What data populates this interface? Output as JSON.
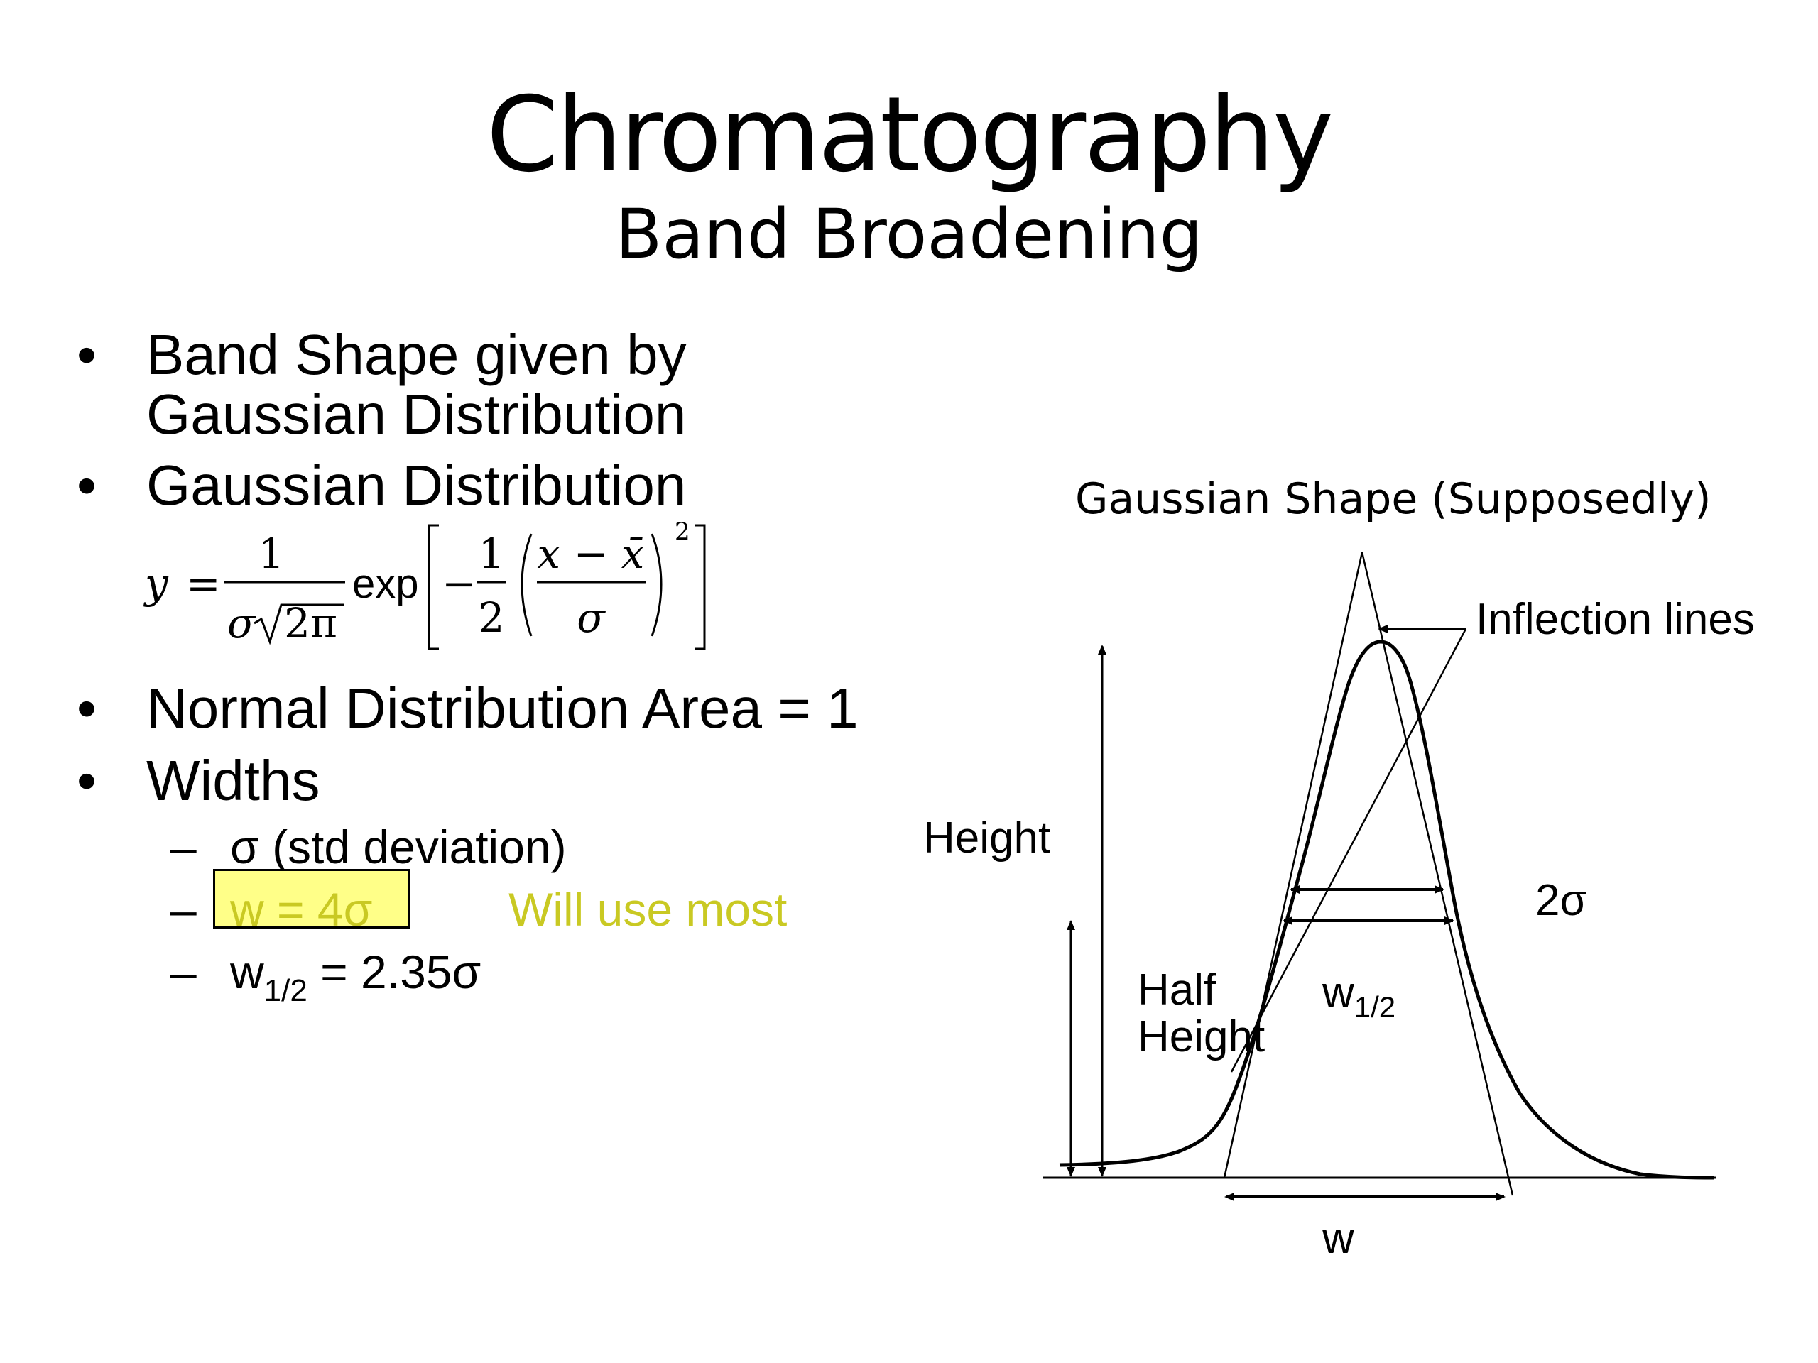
{
  "slide": {
    "title": "Chromatography",
    "subtitle": "Band Broadening"
  },
  "bullets": {
    "b1_line1": "Band Shape given by",
    "b1_line2": "Gaussian Distribution",
    "b2": "Gaussian Distribution",
    "b3": "Normal Distribution Area = 1",
    "b4": "Widths",
    "bullet_char": "•",
    "dash_char": "–"
  },
  "formula": {
    "y": "y",
    "eq": "=",
    "one": "1",
    "sigma": "σ",
    "sqrt2pi": "2π",
    "exp": "exp",
    "minus": "−",
    "half_num": "1",
    "half_den": "2",
    "x_minus_xbar": "x − x̄",
    "inner_den": "σ",
    "power": "2"
  },
  "widths": {
    "sigma_def": "σ (std deviation)",
    "w_def": "w = 4σ",
    "w_note": "Will use most",
    "whalf_prefix": "w",
    "whalf_sub": "1/2",
    "whalf_rest": " = 2.35σ"
  },
  "diagram": {
    "caption": "Gaussian Shape (Supposedly)",
    "inflection_label": "Inflection lines",
    "height_label": "Height",
    "half_height_line1": "Half",
    "half_height_line2": "Height",
    "two_sigma_label": "2σ",
    "whalf_prefix": "w",
    "whalf_sub": "1/2",
    "w_label": "w"
  },
  "colors": {
    "highlight": "#ffff88",
    "note_text": "#c9c923"
  }
}
